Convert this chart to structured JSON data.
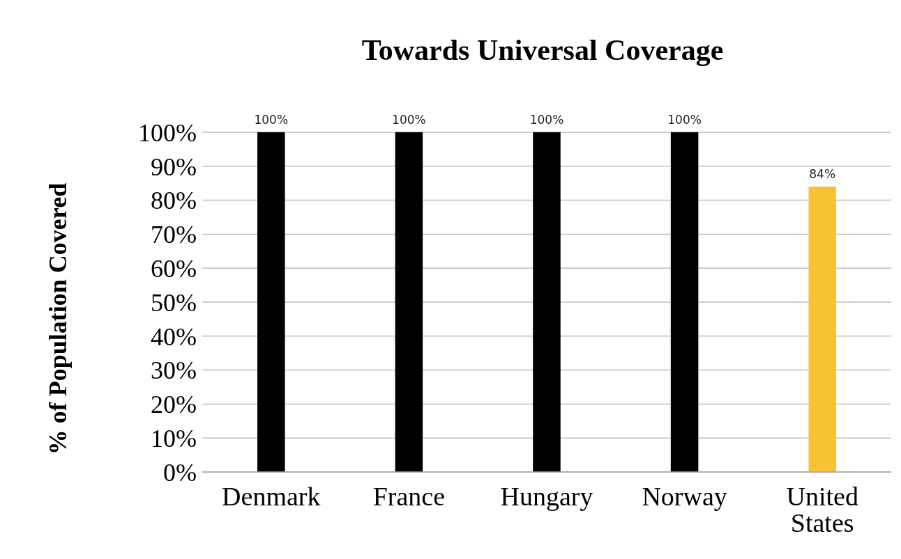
{
  "chart_data": {
    "type": "bar",
    "title": "Towards Universal Coverage",
    "ylabel": "% of Population Covered",
    "categories": [
      "Denmark",
      "France",
      "Hungary",
      "Norway",
      "United States"
    ],
    "values": [
      100,
      100,
      100,
      100,
      84
    ],
    "colors": [
      "#000000",
      "#000000",
      "#000000",
      "#000000",
      "#f8c232"
    ],
    "value_labels": [
      "100%",
      "100%",
      "100%",
      "100%",
      "84%"
    ],
    "ylim": [
      0,
      100
    ],
    "yticks": [
      {
        "value": 0,
        "label": "0%"
      },
      {
        "value": 10,
        "label": "10%"
      },
      {
        "value": 20,
        "label": "20%"
      },
      {
        "value": 30,
        "label": "30%"
      },
      {
        "value": 40,
        "label": "40%"
      },
      {
        "value": 50,
        "label": "50%"
      },
      {
        "value": 60,
        "label": "60%"
      },
      {
        "value": 70,
        "label": "70%"
      },
      {
        "value": 80,
        "label": "80%"
      },
      {
        "value": 90,
        "label": "90%"
      },
      {
        "value": 100,
        "label": "100%"
      }
    ],
    "grid": "y"
  }
}
